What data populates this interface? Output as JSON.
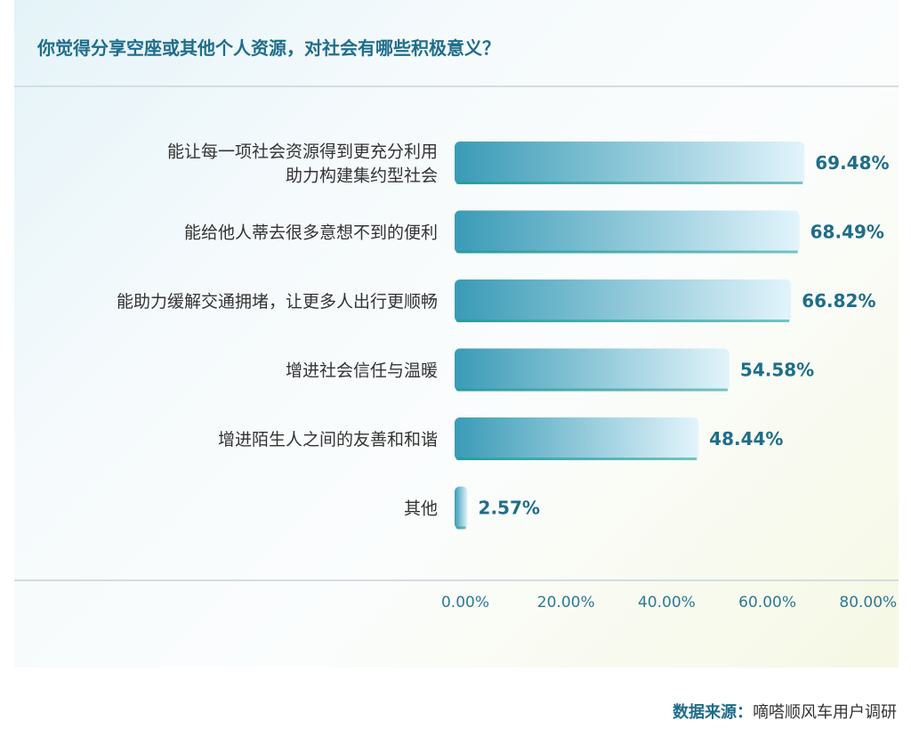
{
  "chart_data": {
    "type": "bar",
    "orientation": "horizontal",
    "title": "你觉得分享空座或其他个人资源，对社会有哪些积极意义？",
    "categories": [
      [
        "能让每一项社会资源得到更充分利用",
        "助力构建集约型社会"
      ],
      [
        "能给他人蒂去很多意想不到的便利"
      ],
      [
        "能助力缓解交通拥堵，让更多人出行更顺畅"
      ],
      [
        "增进社会信任与温暖"
      ],
      [
        "增进陌生人之间的友善和和谐"
      ],
      [
        "其他"
      ]
    ],
    "values": [
      69.48,
      68.49,
      66.82,
      54.58,
      48.44,
      2.57
    ],
    "value_labels": [
      "69.48%",
      "68.49%",
      "66.82%",
      "54.58%",
      "48.44%",
      "2.57%"
    ],
    "xlim": [
      0,
      80
    ],
    "ticks": [
      0,
      20,
      40,
      60,
      80
    ],
    "tick_labels": [
      "0.00%",
      "20.00%",
      "40.00%",
      "60.00%",
      "80.00%"
    ],
    "grid": false,
    "colors": {
      "bar_start": "#3a9bb6",
      "bar_end": "#e2f4fb",
      "bar_edge": "#1a9c8e",
      "value_text": "#1f6d8a",
      "tick_text": "#2a7a97"
    }
  },
  "source": {
    "label": "数据来源：",
    "text": "嘀嗒顺风车用户调研"
  }
}
